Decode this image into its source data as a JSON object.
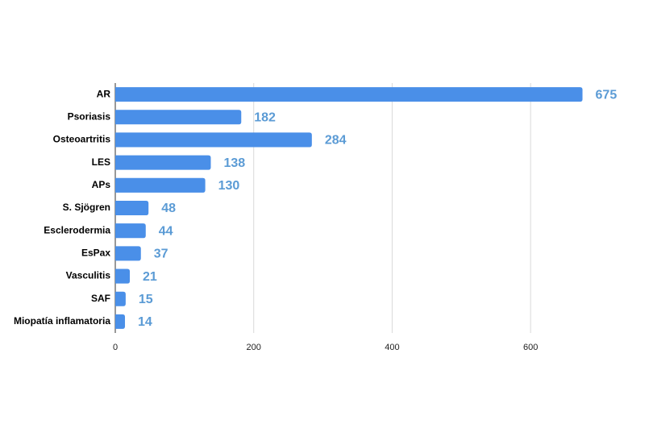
{
  "chart_data": {
    "type": "bar",
    "orientation": "horizontal",
    "categories": [
      "AR",
      "Psoriasis",
      "Osteoartritis",
      "LES",
      "APs",
      "S. Sjögren",
      "Esclerodermia",
      "EsPax",
      "Vasculitis",
      "SAF",
      "Miopatía inflamatoria"
    ],
    "values": [
      675,
      182,
      284,
      138,
      130,
      48,
      44,
      37,
      21,
      15,
      14
    ],
    "color": "#4a8fe8",
    "xlim": [
      0,
      700
    ],
    "xticks": [
      0,
      200,
      400,
      600
    ],
    "grid": true
  }
}
